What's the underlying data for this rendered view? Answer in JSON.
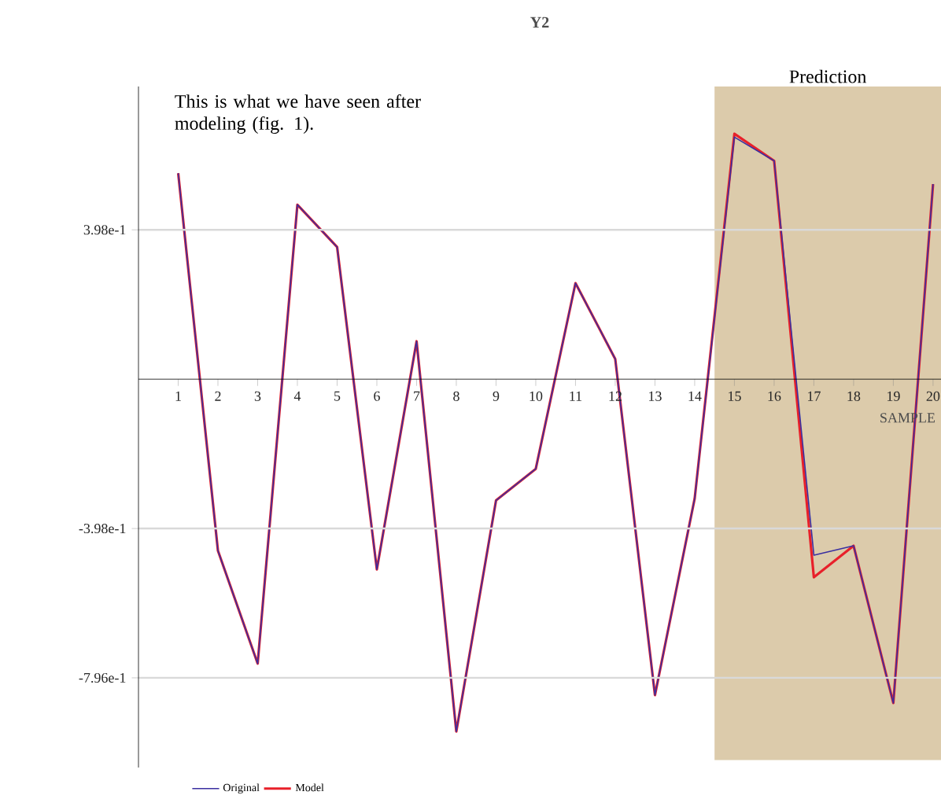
{
  "chart_data": {
    "type": "line",
    "title": "Y2",
    "xlabel": "SAMPLE",
    "categories": [
      "1",
      "2",
      "3",
      "4",
      "5",
      "6",
      "7",
      "8",
      "9",
      "10",
      "11",
      "12",
      "13",
      "14",
      "15",
      "16",
      "17",
      "18",
      "19",
      "20"
    ],
    "series": [
      {
        "name": "Original",
        "color": "#3a2fa0",
        "values": [
          0.549,
          -0.457,
          -0.758,
          0.465,
          0.352,
          -0.507,
          0.101,
          -0.939,
          -0.323,
          -0.239,
          0.256,
          0.054,
          -0.842,
          -0.318,
          0.645,
          0.582,
          -0.469,
          -0.444,
          -0.863,
          0.52
        ]
      },
      {
        "name": "Model",
        "color": "#e8202a",
        "values": [
          0.549,
          -0.457,
          -0.758,
          0.465,
          0.352,
          -0.507,
          0.101,
          -0.939,
          -0.323,
          -0.239,
          0.256,
          0.054,
          -0.842,
          -0.318,
          0.654,
          0.582,
          -0.528,
          -0.444,
          -0.863,
          0.52
        ]
      }
    ],
    "ylim": [
      -1.035,
      0.78
    ],
    "yticks": [
      {
        "value": 0.398,
        "label": "3.98e-1"
      },
      {
        "value": -0.398,
        "label": "-3.98e-1"
      },
      {
        "value": -0.796,
        "label": "-7.96e-1"
      }
    ],
    "grid": "y",
    "legend": "bottom left",
    "line_style": "solid",
    "bands": [
      {
        "axis": "x",
        "from": "15",
        "to": "20",
        "label": "Prediction",
        "color": "#dccbab"
      }
    ],
    "annotations": [
      "This is what we have seen after modeling (fig. 1)."
    ]
  }
}
